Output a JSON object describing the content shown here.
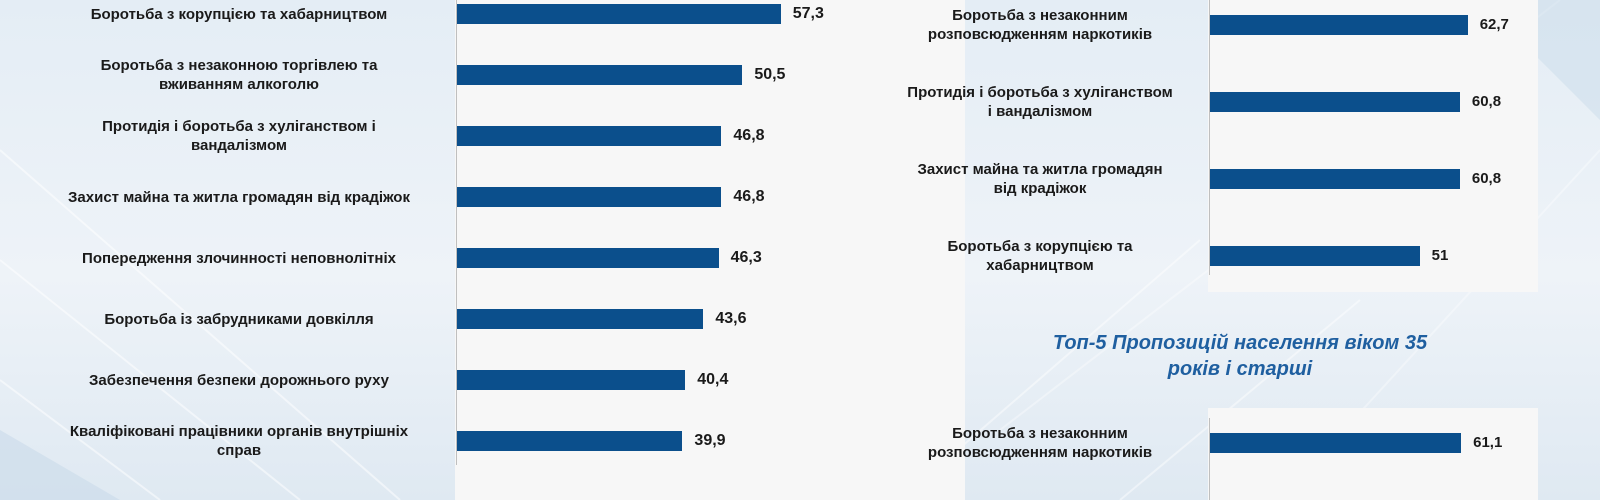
{
  "chart_data": [
    {
      "type": "bar",
      "orientation": "horizontal",
      "categories": [
        "Боротьба з корупцією та хабарництвом",
        "Боротьба з незаконною торгівлею та вживанням алкоголю",
        "Протидія і боротьба з хуліганством і вандалізмом",
        "Захист майна та житла громадян від крадіжок",
        "Попередження злочинності неповнолітніх",
        "Боротьба із забрудниками довкілля",
        "Забезпечення безпеки дорожнього руху",
        "Кваліфіковані працівники органів внутрішніх справ"
      ],
      "values": [
        57.3,
        50.5,
        46.8,
        46.8,
        46.3,
        43.6,
        40.4,
        39.9
      ],
      "value_labels": [
        "57,3",
        "50,5",
        "46,8",
        "46,8",
        "46,3",
        "43,6",
        "40,4",
        "39,9"
      ],
      "xlim": [
        0,
        100
      ],
      "bar_color": "#0b4f8c"
    },
    {
      "type": "bar",
      "orientation": "horizontal",
      "categories": [
        "Боротьба з незаконним розповсюдженням наркотиків",
        "Протидія і боротьба з хуліганством і вандалізмом",
        "Захист майна та житла громадян від крадіжок",
        "Боротьба з корупцією та хабарництвом"
      ],
      "values": [
        62.7,
        60.8,
        60.8,
        51
      ],
      "value_labels": [
        "62,7",
        "60,8",
        "60,8",
        "51"
      ],
      "xlim": [
        0,
        100
      ],
      "bar_color": "#0b4f8c"
    },
    {
      "type": "bar",
      "orientation": "horizontal",
      "title": "Топ-5 Пропозицій населення віком 35 років і старші",
      "categories": [
        "Боротьба з незаконним розповсюдженням наркотиків"
      ],
      "values": [
        61.1
      ],
      "value_labels": [
        "61,1"
      ],
      "xlim": [
        0,
        100
      ],
      "bar_color": "#0b4f8c"
    }
  ],
  "layout_text": {
    "c1": {
      "labels": [
        [
          "Боротьба з корупцією та хабарництвом"
        ],
        [
          "Боротьба з незаконною торгівлею та",
          "вживанням алкоголю"
        ],
        [
          "Протидія і боротьба з хуліганством і",
          "вандалізмом"
        ],
        [
          "Захист майна та житла громадян від крадіжок"
        ],
        [
          "Попередження злочинності неповнолітніх"
        ],
        [
          "Боротьба із забрудниками довкілля"
        ],
        [
          "Забезпечення безпеки дорожнього руху"
        ],
        [
          "Кваліфіковані працівники органів внутрішніх",
          "справ"
        ]
      ]
    },
    "c2": {
      "labels": [
        [
          "Боротьба з незаконним",
          "розповсюдженням наркотиків"
        ],
        [
          "Протидія і боротьба з хуліганством",
          "і вандалізмом"
        ],
        [
          "Захист майна та житла громадян",
          "від крадіжок"
        ],
        [
          "Боротьба з корупцією та",
          "хабарництвом"
        ]
      ]
    },
    "c3": {
      "title_lines": [
        "Топ-5 Пропозицій населення віком 35",
        "років і старші"
      ],
      "labels": [
        [
          "Боротьба з незаконним",
          "розповсюдженням наркотиків"
        ]
      ]
    }
  }
}
